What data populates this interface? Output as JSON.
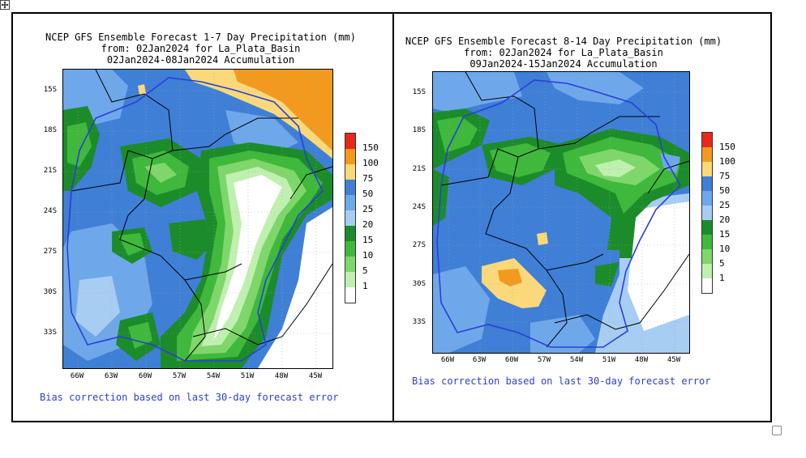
{
  "left": {
    "title_line1": "NCEP GFS Ensemble Forecast 1-7 Day Precipitation (mm)",
    "title_line2": "from: 02Jan2024   for La_Plata_Basin",
    "title_line3": "02Jan2024-08Jan2024 Accumulation",
    "lat_labels": [
      "15S",
      "18S",
      "21S",
      "24S",
      "27S",
      "30S",
      "33S"
    ],
    "lon_labels": [
      "66W",
      "63W",
      "60W",
      "57W",
      "54W",
      "51W",
      "48W",
      "45W"
    ],
    "bias_note": "Bias correction based on last 30-day forecast error",
    "legend_labels": [
      "150",
      "100",
      "75",
      "50",
      "25",
      "20",
      "15",
      "10",
      "5",
      "1"
    ]
  },
  "right": {
    "title_line1": "NCEP GFS Ensemble Forecast 8-14 Day Precipitation (mm)",
    "title_line2": "from: 02Jan2024   for La_Plata_Basin",
    "title_line3": "09Jan2024-15Jan2024 Accumulation",
    "lat_labels": [
      "15S",
      "18S",
      "21S",
      "24S",
      "27S",
      "30S",
      "33S"
    ],
    "lon_labels": [
      "66W",
      "63W",
      "60W",
      "57W",
      "54W",
      "51W",
      "48W",
      "45W"
    ],
    "bias_note": "Bias correction based on last 30-day forecast error",
    "legend_labels": [
      "150",
      "100",
      "75",
      "50",
      "25",
      "20",
      "15",
      "10",
      "5",
      "1"
    ]
  },
  "legend_colors": [
    "#e8281c",
    "#f39a1e",
    "#fbd97a",
    "#3f7fd6",
    "#6ea8ea",
    "#a7cdf2",
    "#1c8c2a",
    "#3fb83c",
    "#7fd66a",
    "#bff0b0",
    "#ffffff"
  ],
  "icons": {
    "move": "move-icon",
    "resize": "resize-handle-icon"
  }
}
